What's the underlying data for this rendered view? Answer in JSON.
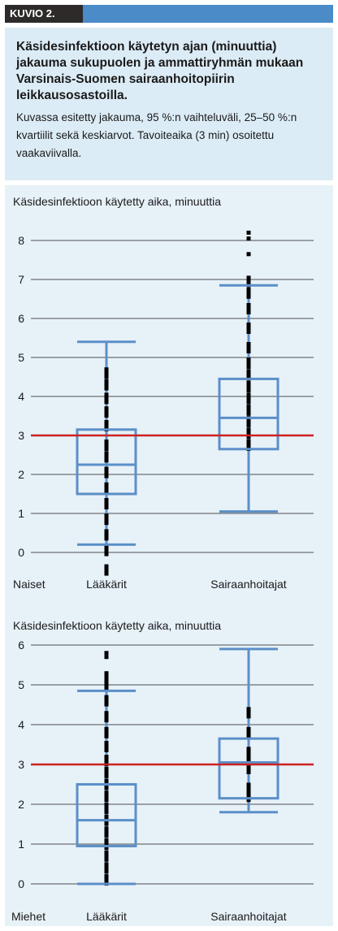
{
  "header": {
    "figure_label": "KUVIO 2."
  },
  "caption": {
    "title": "Käsidesinfektioon käytetyn ajan (minuuttia) jakauma sukupuolen ja ammattiryhmän mukaan Varsinais-Suomen sairaanhoitopiirin leikkausosastoilla.",
    "description": "Kuvassa esitetty jakauma, 95 %:n vaihteluväli, 25–50 %:n kvartiilit sekä keskiarvot. Tavoiteaika (3 min) osoitettu vaakaviivalla."
  },
  "colors": {
    "box": "#5b8fc8",
    "target_line": "#cc2222",
    "dots": "#000000",
    "header_tab": "#2e2a2a",
    "header_bar": "#4a8bc8",
    "caption_bg": "#dcecf6",
    "chart_bg": "#e7f1f8"
  },
  "chart_data": [
    {
      "type": "box",
      "title": "Käsidesinfektioon käytetty aika, minuuttia",
      "group_label": "Naiset",
      "categories": [
        "Lääkärit",
        "Sairaanhoitajat"
      ],
      "yticks": [
        0,
        1,
        2,
        3,
        4,
        5,
        6,
        7,
        8
      ],
      "ylim": [
        -0.5,
        8.4
      ],
      "target_line": 3,
      "grid": true,
      "boxes": [
        {
          "category": "Lääkärit",
          "whisker_low": 0.2,
          "q1": 1.5,
          "median": 2.25,
          "q3": 3.15,
          "whisker_high": 5.4,
          "distribution": [
            -0.45,
            0.05,
            0.45,
            0.85,
            1.25,
            1.65,
            2.05,
            2.45,
            2.75,
            3.25,
            3.6,
            3.95,
            4.3,
            4.6
          ],
          "outliers": []
        },
        {
          "category": "Sairaanhoitajat",
          "whisker_low": 1.05,
          "q1": 2.65,
          "median": 3.45,
          "q3": 4.45,
          "whisker_high": 6.85,
          "distribution": [
            2.75,
            3.05,
            3.35,
            3.65,
            3.95,
            4.25,
            4.55,
            4.85,
            5.25,
            5.75,
            6.25,
            6.65,
            6.95
          ],
          "outliers": [
            7.65,
            8.05,
            8.2
          ]
        }
      ]
    },
    {
      "type": "box",
      "title": "Käsidesinfektioon käytetty aika, minuuttia",
      "group_label": "Miehet",
      "categories": [
        "Lääkärit",
        "Sairaanhoitajat"
      ],
      "yticks": [
        0,
        1,
        2,
        3,
        4,
        5,
        6
      ],
      "ylim": [
        -0.3,
        6.3
      ],
      "target_line": 3,
      "grid": true,
      "boxes": [
        {
          "category": "Lääkärit",
          "whisker_low": 0.0,
          "q1": 0.95,
          "median": 1.6,
          "q3": 2.5,
          "whisker_high": 4.85,
          "distribution": [
            0.1,
            0.4,
            0.7,
            1.0,
            1.3,
            1.6,
            1.9,
            2.2,
            2.5,
            2.8,
            3.1,
            3.45,
            3.8,
            4.2,
            4.6,
            5.0,
            5.2
          ],
          "outliers": [
            5.7,
            5.8
          ]
        },
        {
          "category": "Sairaanhoitajat",
          "whisker_low": 1.8,
          "q1": 2.15,
          "median": 3.05,
          "q3": 3.65,
          "whisker_high": 5.9,
          "distribution": [
            2.2,
            2.4,
            2.9,
            3.1,
            3.3,
            3.8,
            4.3
          ],
          "outliers": []
        }
      ]
    }
  ]
}
